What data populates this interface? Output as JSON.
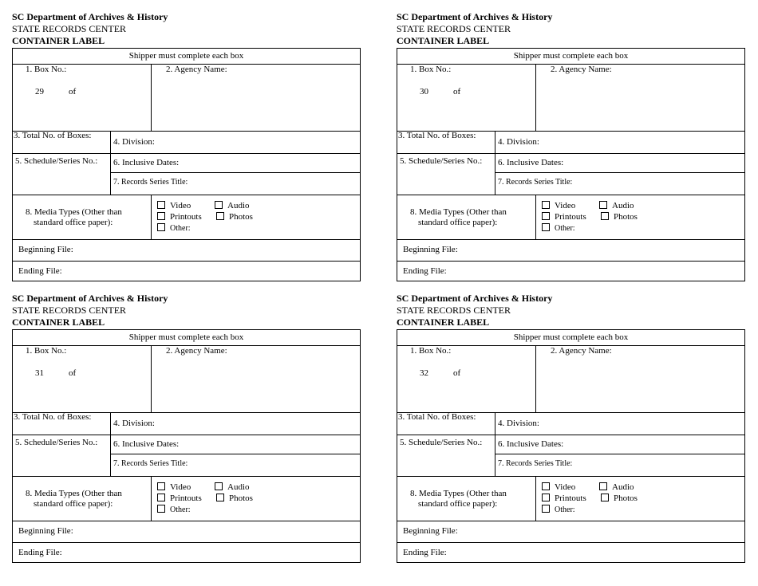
{
  "form": {
    "org": "SC Department of Archives & History",
    "center": "STATE RECORDS CENTER",
    "title": "CONTAINER LABEL",
    "instruction": "Shipper must complete each box",
    "box_no": "1. Box No.:",
    "of": "of",
    "agency": "2. Agency Name:",
    "total": "3. Total No. of Boxes:",
    "division": "4. Division:",
    "schedule": "5. Schedule/Series No.:",
    "dates": "6. Inclusive Dates:",
    "series_title": "7. Records Series Title:",
    "media_1": "8. Media Types (Other than",
    "media_2": "standard office paper):",
    "video": "Video",
    "audio": "Audio",
    "printouts": "Printouts",
    "photos": "Photos",
    "other": "Other:",
    "beginning": "Beginning File:",
    "ending": "Ending File:"
  },
  "labels": [
    {
      "box_number": "29"
    },
    {
      "box_number": "30"
    },
    {
      "box_number": "31"
    },
    {
      "box_number": "32"
    }
  ]
}
